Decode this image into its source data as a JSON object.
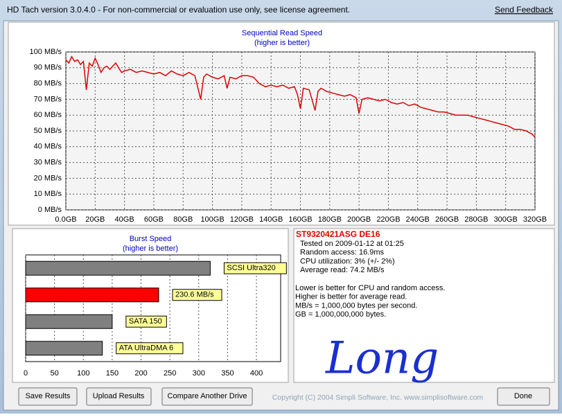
{
  "window_title": "HD Tach version 3.0.4.0  - For non-commercial or evaluation use only, see license agreement.",
  "send_feedback": "Send Feedback",
  "chart_data": [
    {
      "type": "line",
      "title": "Sequential Read Speed",
      "subtitle": "(higher is better)",
      "color": "#e00000",
      "grid": true,
      "x": [
        0,
        2,
        4,
        6,
        8,
        10,
        12,
        14,
        16,
        18,
        20,
        22,
        24,
        26,
        28,
        30,
        32,
        34,
        36,
        38,
        40,
        44,
        48,
        52,
        56,
        60,
        64,
        68,
        72,
        76,
        80,
        84,
        88,
        92,
        94,
        96,
        100,
        104,
        108,
        110,
        112,
        116,
        120,
        124,
        128,
        132,
        136,
        140,
        144,
        148,
        152,
        156,
        158,
        160,
        162,
        166,
        170,
        172,
        174,
        178,
        182,
        186,
        190,
        194,
        198,
        200,
        202,
        206,
        210,
        214,
        218,
        222,
        226,
        230,
        234,
        238,
        242,
        246,
        250,
        254,
        258,
        262,
        266,
        270,
        274,
        278,
        282,
        286,
        290,
        294,
        298,
        302,
        306,
        310,
        314,
        318,
        320
      ],
      "values": [
        95,
        93,
        97,
        94,
        95,
        92,
        94,
        76,
        93,
        91,
        96,
        92,
        87,
        90,
        91,
        89,
        91,
        93,
        90,
        87,
        88,
        89,
        87,
        88,
        87,
        86,
        87,
        85,
        88,
        86,
        85,
        87,
        85,
        70,
        84,
        86,
        84,
        83,
        85,
        77,
        84,
        83,
        85,
        85,
        84,
        80,
        78,
        79,
        78,
        79,
        77,
        78,
        73,
        64,
        77,
        76,
        63,
        75,
        77,
        75,
        74,
        73,
        72,
        73,
        71,
        61,
        70,
        71,
        70,
        69,
        70,
        68,
        67,
        68,
        66,
        67,
        65,
        64,
        63,
        62,
        62,
        61,
        60,
        60,
        60,
        59,
        58,
        57,
        56,
        55,
        54,
        53,
        51,
        51,
        50,
        48,
        46
      ],
      "xlim": [
        0,
        320
      ],
      "xticks": [
        {
          "value": 0,
          "label": "0.0GB"
        },
        {
          "value": 20,
          "label": "20GB"
        },
        {
          "value": 40,
          "label": "40GB"
        },
        {
          "value": 60,
          "label": "60GB"
        },
        {
          "value": 80,
          "label": "80GB"
        },
        {
          "value": 100,
          "label": "100GB"
        },
        {
          "value": 120,
          "label": "120GB"
        },
        {
          "value": 140,
          "label": "140GB"
        },
        {
          "value": 160,
          "label": "160GB"
        },
        {
          "value": 180,
          "label": "180GB"
        },
        {
          "value": 200,
          "label": "200GB"
        },
        {
          "value": 220,
          "label": "220GB"
        },
        {
          "value": 240,
          "label": "240GB"
        },
        {
          "value": 260,
          "label": "260GB"
        },
        {
          "value": 280,
          "label": "280GB"
        },
        {
          "value": 300,
          "label": "300GB"
        },
        {
          "value": 320,
          "label": "320GB"
        }
      ],
      "ylim": [
        0,
        100
      ],
      "yticks": [
        {
          "value": 0,
          "label": "0 MB/s"
        },
        {
          "value": 10,
          "label": "10 MB/s"
        },
        {
          "value": 20,
          "label": "20 MB/s"
        },
        {
          "value": 30,
          "label": "30 MB/s"
        },
        {
          "value": 40,
          "label": "40 MB/s"
        },
        {
          "value": 50,
          "label": "50 MB/s"
        },
        {
          "value": 60,
          "label": "60 MB/s"
        },
        {
          "value": 70,
          "label": "70 MB/s"
        },
        {
          "value": 80,
          "label": "80 MB/s"
        },
        {
          "value": 90,
          "label": "90 MB/s"
        },
        {
          "value": 100,
          "label": "100 MB/s"
        }
      ]
    },
    {
      "type": "barh",
      "title": "Burst Speed",
      "subtitle": "(higher is better)",
      "grid": true,
      "categories": [
        "SCSI Ultra320",
        null,
        "SATA 150",
        "ATA UltraDMA 6"
      ],
      "values": [
        320,
        230.6,
        150,
        133
      ],
      "value_labels": [
        null,
        "230.6 MB/s",
        null,
        null
      ],
      "colors": [
        "#808080",
        "#ff0000",
        "#808080",
        "#808080"
      ],
      "xlim": [
        0,
        442
      ],
      "xticks": [
        0,
        50,
        100,
        150,
        200,
        250,
        300,
        350,
        400
      ]
    }
  ],
  "info": {
    "drive": "ST9320421ASG DE16",
    "stats": [
      "Tested on 2009-01-12 at 01:25",
      "Random access: 16.9ms",
      "CPU utilization: 3% (+/- 2%)",
      "Average read: 74.2 MB/s"
    ],
    "notes": [
      "Lower is better for CPU and random access.",
      "Higher is better for average read.",
      "MB/s = 1,000,000 bytes per second.",
      "GB = 1,000,000,000 bytes."
    ],
    "handwriting": "Long"
  },
  "buttons": [
    "Save Results",
    "Upload Results",
    "Compare Another Drive",
    "Done"
  ],
  "copyright": "Copyright (C) 2004 Simpli Software, Inc. www.simplisoftware.com"
}
